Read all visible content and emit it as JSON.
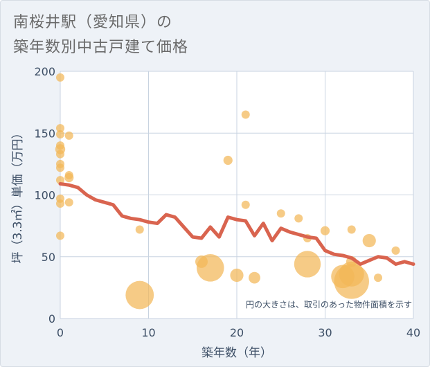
{
  "title_line1": "南桜井駅（愛知県）の",
  "title_line2": "築年数別中古戸建て価格",
  "colors": {
    "background": "#eef2f7",
    "plot_bg": "#ffffff",
    "grid": "#c8d3e0",
    "bubble": "#f2b757",
    "line": "#d9644f",
    "text": "#3d4f66"
  },
  "chart_data": {
    "type": "scatter",
    "xlabel": "築年数（年）",
    "ylabel": "坪（3.3㎡）単価（万円）",
    "xlim": [
      0,
      40
    ],
    "ylim": [
      0,
      200
    ],
    "x_ticks": [
      0,
      10,
      20,
      30,
      40
    ],
    "y_ticks": [
      0,
      50,
      100,
      150,
      200
    ],
    "note": "円の大きさは、取引のあった物件面積を示す",
    "scatter": [
      {
        "x": 0,
        "y": 195,
        "size": 1
      },
      {
        "x": 0,
        "y": 154,
        "size": 1
      },
      {
        "x": 0,
        "y": 149,
        "size": 1
      },
      {
        "x": 0,
        "y": 140,
        "size": 1
      },
      {
        "x": 0,
        "y": 137,
        "size": 1.2
      },
      {
        "x": 0,
        "y": 133,
        "size": 1
      },
      {
        "x": 0,
        "y": 125,
        "size": 1
      },
      {
        "x": 0,
        "y": 122,
        "size": 1
      },
      {
        "x": 0,
        "y": 112,
        "size": 1
      },
      {
        "x": 0,
        "y": 97,
        "size": 1
      },
      {
        "x": 0,
        "y": 93,
        "size": 1
      },
      {
        "x": 0,
        "y": 67,
        "size": 1
      },
      {
        "x": 1,
        "y": 148,
        "size": 1
      },
      {
        "x": 1,
        "y": 116,
        "size": 1
      },
      {
        "x": 1,
        "y": 114,
        "size": 1.1
      },
      {
        "x": 1,
        "y": 94,
        "size": 1
      },
      {
        "x": 9,
        "y": 72,
        "size": 1
      },
      {
        "x": 9,
        "y": 19,
        "size": 3.4
      },
      {
        "x": 16,
        "y": 46,
        "size": 1.5
      },
      {
        "x": 17,
        "y": 41,
        "size": 3.3
      },
      {
        "x": 19,
        "y": 128,
        "size": 1.1
      },
      {
        "x": 20,
        "y": 35,
        "size": 1.6
      },
      {
        "x": 21,
        "y": 165,
        "size": 1
      },
      {
        "x": 21,
        "y": 92,
        "size": 1
      },
      {
        "x": 22,
        "y": 33,
        "size": 1.4
      },
      {
        "x": 25,
        "y": 85,
        "size": 1
      },
      {
        "x": 27,
        "y": 81,
        "size": 1
      },
      {
        "x": 28,
        "y": 44,
        "size": 3.2
      },
      {
        "x": 28,
        "y": 65,
        "size": 1
      },
      {
        "x": 30,
        "y": 71,
        "size": 1.1
      },
      {
        "x": 32,
        "y": 34,
        "size": 2.8
      },
      {
        "x": 33,
        "y": 30,
        "size": 4.2
      },
      {
        "x": 33,
        "y": 36,
        "size": 3.0
      },
      {
        "x": 33,
        "y": 46,
        "size": 1.3
      },
      {
        "x": 33,
        "y": 72,
        "size": 1
      },
      {
        "x": 35,
        "y": 63,
        "size": 1.6
      },
      {
        "x": 36,
        "y": 33,
        "size": 1
      },
      {
        "x": 38,
        "y": 55,
        "size": 1
      }
    ],
    "line": {
      "x": [
        0,
        1,
        2,
        3,
        4,
        5,
        6,
        7,
        8,
        9,
        10,
        11,
        12,
        13,
        14,
        15,
        16,
        17,
        18,
        19,
        20,
        21,
        22,
        23,
        24,
        25,
        26,
        27,
        28,
        29,
        30,
        31,
        32,
        33,
        34,
        35,
        36,
        37,
        38,
        39,
        40
      ],
      "y": [
        109,
        108,
        106,
        100,
        96,
        94,
        92,
        83,
        81,
        80,
        78,
        77,
        84,
        82,
        74,
        66,
        65,
        74,
        66,
        82,
        80,
        79,
        67,
        77,
        63,
        73,
        70,
        68,
        66,
        65,
        55,
        52,
        51,
        49,
        44,
        47,
        50,
        49,
        44,
        46,
        44
      ]
    }
  }
}
